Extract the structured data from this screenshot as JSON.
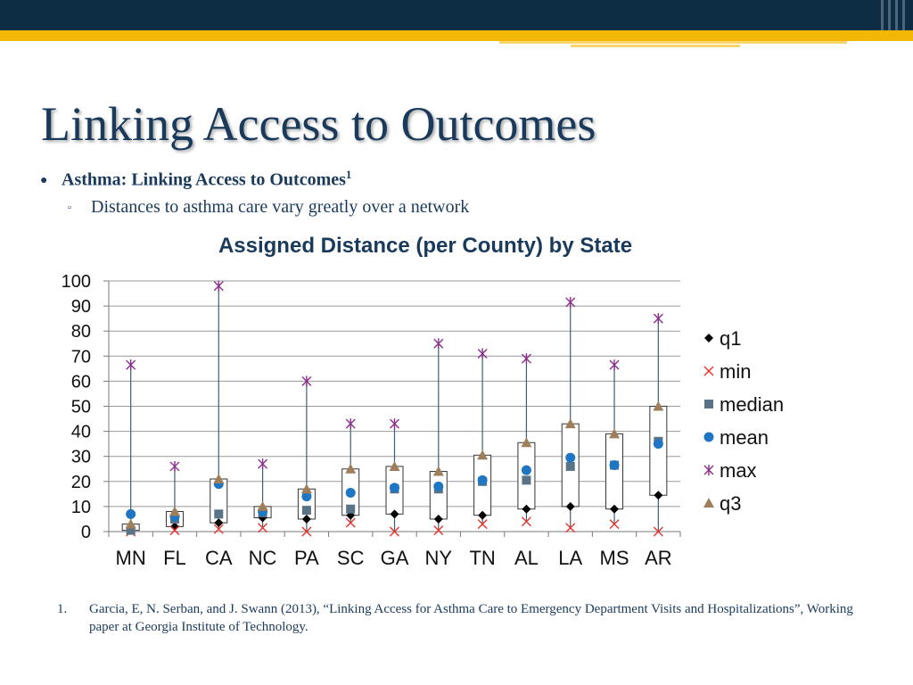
{
  "slide": {
    "title": "Linking Access to Outcomes",
    "bullet": "Asthma: Linking Access to Outcomes",
    "bullet_superscript": "1",
    "subbullet": "Distances to asthma care vary greatly over a network",
    "footnote_number": "1.",
    "footnote_text": "Garcia, E, N. Serban, and J. Swann (2013), “Linking Access for Asthma Care to Emergency Department Visits and Hospitalizations”, Working paper at Georgia Institute of Technology."
  },
  "colors": {
    "top_bar": "#0d2d45",
    "gold_bar": "#f2b705",
    "title_text": "#1a3a5c",
    "q1": "#000000",
    "min": "#e8322b",
    "median": "#5a7387",
    "mean": "#1f77c4",
    "max": "#8b2d8e",
    "q3": "#9e7f5a"
  },
  "chart_data": {
    "type": "box",
    "title": "Assigned Distance (per County) by State",
    "xlabel": "",
    "ylabel": "",
    "ylim": [
      0,
      100
    ],
    "yticks": [
      0,
      10,
      20,
      30,
      40,
      50,
      60,
      70,
      80,
      90,
      100
    ],
    "grid": true,
    "legend_position": "right",
    "categories": [
      "MN",
      "FL",
      "CA",
      "NC",
      "PA",
      "SC",
      "GA",
      "NY",
      "TN",
      "AL",
      "LA",
      "MS",
      "AR"
    ],
    "series": [
      {
        "name": "q1",
        "marker": "diamond",
        "values": [
          0.5,
          2,
          3.5,
          5.5,
          5,
          6.5,
          7,
          5,
          6.5,
          9,
          10,
          9,
          14.5
        ]
      },
      {
        "name": "min",
        "marker": "x",
        "values": [
          0,
          0.5,
          1,
          1.5,
          0,
          3.5,
          0,
          0.5,
          3,
          4,
          1.5,
          3,
          0
        ]
      },
      {
        "name": "median",
        "marker": "square",
        "values": [
          0.5,
          5,
          7,
          7.5,
          8.5,
          9,
          17,
          17,
          20,
          20.5,
          26,
          26.5,
          36
        ]
      },
      {
        "name": "mean",
        "marker": "circle",
        "values": [
          7,
          6,
          19,
          8,
          14,
          15.5,
          17.5,
          18,
          20.5,
          24.5,
          29.5,
          26.5,
          35
        ]
      },
      {
        "name": "max",
        "marker": "asterisk",
        "values": [
          66.5,
          26,
          98,
          27,
          60,
          43,
          43,
          75,
          71,
          69,
          91.5,
          66.5,
          85
        ]
      },
      {
        "name": "q3",
        "marker": "triangle",
        "values": [
          3,
          8,
          21,
          10,
          17,
          25,
          26,
          24,
          30.5,
          35.5,
          43,
          39,
          50
        ]
      }
    ]
  }
}
